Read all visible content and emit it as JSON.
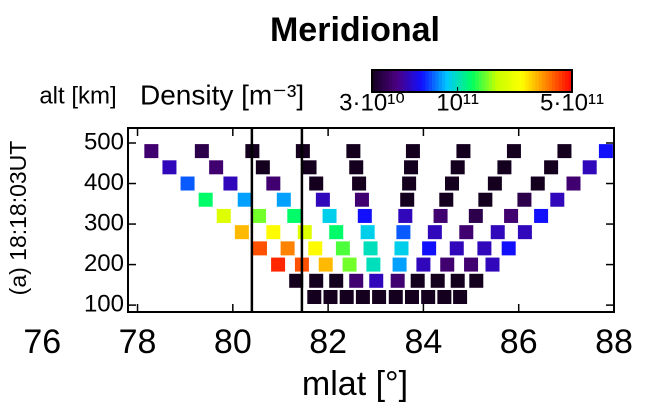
{
  "chart_data": {
    "type": "scatter",
    "title": "Meridional",
    "xlabel": "mlat [°]",
    "ylabel": "(a) 18:18:03UT",
    "yunit": "alt [km]",
    "colorbar_label": "Density [m⁻³]",
    "xlim": [
      77.8,
      88
    ],
    "xticks": [
      76,
      78,
      80,
      82,
      84,
      86,
      88
    ],
    "ylim": [
      83,
      537
    ],
    "yticks": [
      100,
      200,
      300,
      400,
      500
    ],
    "clim": [
      30000000000.0,
      500000000000.0
    ],
    "log_color_scale": true,
    "cticks": [
      {
        "value": 30000000000.0,
        "label": "3·10¹⁰"
      },
      {
        "value": 100000000000.0,
        "label": "10¹¹"
      },
      {
        "value": 500000000000.0,
        "label": "5·10¹¹"
      }
    ],
    "colormap": [
      "#14001e",
      "#4b0082",
      "#1010ff",
      "#00c8ff",
      "#00ff60",
      "#c8ff00",
      "#ffff00",
      "#ff8000",
      "#ff0000"
    ],
    "vertical_lines": [
      80.4,
      81.45
    ],
    "series": [
      {
        "x": [
          81.71,
          81.33,
          80.95,
          80.57,
          80.19,
          79.81,
          79.43,
          79.05,
          78.67,
          78.29
        ],
        "y": [
          120,
          160,
          200,
          240,
          280,
          320,
          360,
          400,
          440,
          480
        ],
        "values": [
          20000000000.0,
          20000000000.0,
          450000000000.0,
          400000000000.0,
          300000000000.0,
          200000000000.0,
          120000000000.0,
          70000000000.0,
          50000000000.0,
          40000000000.0
        ]
      },
      {
        "x": [
          82.05,
          81.75,
          81.45,
          81.15,
          80.85,
          80.55,
          80.25,
          79.95,
          79.65,
          79.35
        ],
        "y": [
          120,
          160,
          200,
          240,
          280,
          320,
          360,
          400,
          440,
          480
        ],
        "values": [
          20000000000.0,
          25000000000.0,
          400000000000.0,
          350000000000.0,
          250000000000.0,
          150000000000.0,
          80000000000.0,
          50000000000.0,
          40000000000.0,
          35000000000.0
        ]
      },
      {
        "x": [
          82.39,
          82.17,
          81.95,
          81.73,
          81.51,
          81.29,
          81.07,
          80.85,
          80.63,
          80.41
        ],
        "y": [
          120,
          160,
          200,
          240,
          280,
          320,
          360,
          400,
          440,
          480
        ],
        "values": [
          20000000000.0,
          30000000000.0,
          300000000000.0,
          250000000000.0,
          200000000000.0,
          120000000000.0,
          80000000000.0,
          40000000000.0,
          30000000000.0,
          20000000000.0
        ]
      },
      {
        "x": [
          82.73,
          82.59,
          82.45,
          82.31,
          82.17,
          82.03,
          81.89,
          81.75,
          81.61,
          81.47
        ],
        "y": [
          120,
          160,
          200,
          240,
          280,
          320,
          360,
          400,
          440,
          480
        ],
        "values": [
          20000000000.0,
          40000000000.0,
          150000000000.0,
          140000000000.0,
          120000000000.0,
          90000000000.0,
          50000000000.0,
          30000000000.0,
          20000000000.0,
          20000000000.0
        ]
      },
      {
        "x": [
          83.07,
          83.01,
          82.95,
          82.89,
          82.83,
          82.77,
          82.71,
          82.65,
          82.59,
          82.53
        ],
        "y": [
          120,
          160,
          200,
          240,
          280,
          320,
          360,
          400,
          440,
          480
        ],
        "values": [
          20000000000.0,
          50000000000.0,
          100000000000.0,
          100000000000.0,
          90000000000.0,
          60000000000.0,
          40000000000.0,
          20000000000.0,
          20000000000.0,
          20000000000.0
        ]
      },
      {
        "x": [
          83.42,
          83.46,
          83.5,
          83.54,
          83.58,
          83.62,
          83.66,
          83.7,
          83.74,
          83.78
        ],
        "y": [
          120,
          160,
          200,
          240,
          280,
          320,
          360,
          400,
          440,
          480
        ],
        "values": [
          20000000000.0,
          40000000000.0,
          80000000000.0,
          90000000000.0,
          70000000000.0,
          50000000000.0,
          30000000000.0,
          20000000000.0,
          20000000000.0,
          20000000000.0
        ]
      },
      {
        "x": [
          83.76,
          83.88,
          84.0,
          84.12,
          84.24,
          84.36,
          84.48,
          84.6,
          84.72,
          84.84
        ],
        "y": [
          120,
          160,
          200,
          240,
          280,
          320,
          360,
          400,
          440,
          480
        ],
        "values": [
          20000000000.0,
          30000000000.0,
          50000000000.0,
          60000000000.0,
          50000000000.0,
          40000000000.0,
          30000000000.0,
          20000000000.0,
          20000000000.0,
          20000000000.0
        ]
      },
      {
        "x": [
          84.1,
          84.3,
          84.5,
          84.7,
          84.9,
          85.1,
          85.3,
          85.5,
          85.7,
          85.9
        ],
        "y": [
          120,
          160,
          200,
          240,
          280,
          320,
          360,
          400,
          440,
          480
        ],
        "values": [
          20000000000.0,
          30000000000.0,
          40000000000.0,
          50000000000.0,
          40000000000.0,
          35000000000.0,
          30000000000.0,
          20000000000.0,
          20000000000.0,
          20000000000.0
        ]
      },
      {
        "x": [
          84.44,
          84.72,
          85.0,
          85.28,
          85.56,
          85.84,
          86.12,
          86.4,
          86.68,
          86.96
        ],
        "y": [
          120,
          160,
          200,
          240,
          280,
          320,
          360,
          400,
          440,
          480
        ],
        "values": [
          20000000000.0,
          30000000000.0,
          40000000000.0,
          50000000000.0,
          50000000000.0,
          40000000000.0,
          35000000000.0,
          30000000000.0,
          25000000000.0,
          20000000000.0
        ]
      },
      {
        "x": [
          84.77,
          85.11,
          85.45,
          85.79,
          86.13,
          86.47,
          86.81,
          87.15,
          87.49,
          87.83
        ],
        "y": [
          120,
          160,
          200,
          240,
          280,
          320,
          360,
          400,
          440,
          480
        ],
        "values": [
          20000000000.0,
          30000000000.0,
          50000000000.0,
          60000000000.0,
          50000000000.0,
          60000000000.0,
          50000000000.0,
          40000000000.0,
          50000000000.0,
          60000000000.0
        ]
      }
    ]
  }
}
